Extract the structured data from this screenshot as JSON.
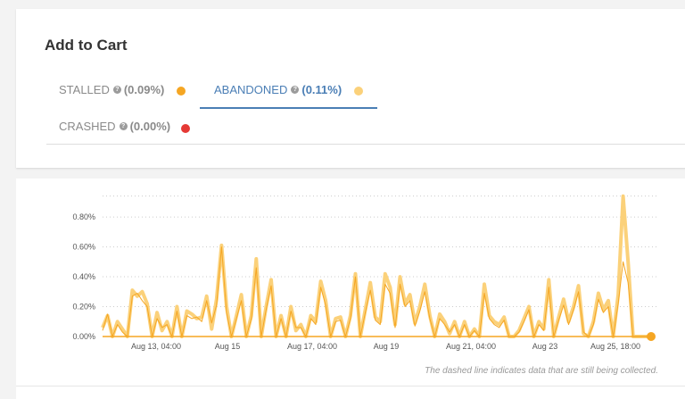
{
  "card": {
    "title": "Add to Cart"
  },
  "tabs": [
    {
      "label": "STALLED",
      "value": "(0.09%)",
      "color": "#f5a623",
      "active": false
    },
    {
      "label": "ABANDONED",
      "value": "(0.11%)",
      "color": "#fbd17a",
      "active": true
    },
    {
      "label": "CRASHED",
      "value": "(0.00%)",
      "color": "#e53935",
      "active": false
    }
  ],
  "chart_data": {
    "type": "line",
    "yticks": [
      "0.00%",
      "0.20%",
      "0.40%",
      "0.60%",
      "0.80%"
    ],
    "ylim": [
      0,
      0.95
    ],
    "xlim": [
      "Aug 12, 00:00",
      "Aug 26, 06:00"
    ],
    "xticks": [
      "Aug 13, 04:00",
      "Aug 15",
      "Aug 17, 04:00",
      "Aug 19",
      "Aug 21, 04:00",
      "Aug 23",
      "Aug 25, 18:00"
    ],
    "grid": true,
    "series": [
      {
        "color": "#fbd17a",
        "values": [
          0.06,
          0.14,
          0,
          0.1,
          0.05,
          0,
          0.31,
          0.27,
          0.3,
          0.22,
          0,
          0.16,
          0.04,
          0.1,
          0,
          0.2,
          0,
          0.17,
          0.15,
          0.12,
          0.13,
          0.27,
          0.05,
          0.25,
          0.61,
          0.2,
          0,
          0.14,
          0.28,
          0,
          0.14,
          0.52,
          0,
          0.2,
          0.38,
          0,
          0.14,
          0,
          0.2,
          0.04,
          0.08,
          0,
          0.14,
          0.1,
          0.37,
          0.24,
          0,
          0.12,
          0.13,
          0,
          0.14,
          0.42,
          0,
          0.18,
          0.36,
          0.13,
          0.1,
          0.42,
          0.33,
          0.08,
          0.4,
          0.22,
          0.28,
          0.09,
          0.2,
          0.35,
          0.14,
          0,
          0.15,
          0.1,
          0.02,
          0.1,
          0,
          0.1,
          0,
          0.05,
          0,
          0.35,
          0.14,
          0.1,
          0.08,
          0.13,
          0,
          0,
          0.04,
          0.12,
          0.2,
          0,
          0.1,
          0.05,
          0.38,
          0,
          0.13,
          0.25,
          0.1,
          0.2,
          0.34,
          0.02,
          0,
          0.1,
          0.29,
          0.18,
          0.24,
          0,
          0.28,
          0.94,
          0.5,
          0,
          0,
          0,
          0,
          0
        ],
        "line_width": 4
      },
      {
        "color": "#f5a623",
        "values": [
          0.04,
          0.15,
          0,
          0.08,
          0.03,
          0,
          0.27,
          0.29,
          0.24,
          0.2,
          0,
          0.12,
          0.06,
          0.08,
          0,
          0.17,
          0,
          0.14,
          0.12,
          0.13,
          0.1,
          0.24,
          0.09,
          0.21,
          0.6,
          0.16,
          0,
          0.12,
          0.24,
          0,
          0.12,
          0.46,
          0,
          0.18,
          0.34,
          0,
          0.12,
          0,
          0.17,
          0.06,
          0.06,
          0,
          0.12,
          0.08,
          0.33,
          0.21,
          0,
          0.1,
          0.11,
          0,
          0.12,
          0.4,
          0,
          0.16,
          0.31,
          0.11,
          0.08,
          0.35,
          0.29,
          0.06,
          0.35,
          0.2,
          0.24,
          0.07,
          0.17,
          0.3,
          0.12,
          0,
          0.12,
          0.08,
          0.03,
          0.08,
          0,
          0.08,
          0,
          0.04,
          0,
          0.29,
          0.12,
          0.08,
          0.06,
          0.11,
          0,
          0,
          0.03,
          0.1,
          0.18,
          0,
          0.08,
          0.04,
          0.33,
          0,
          0.11,
          0.21,
          0.08,
          0.18,
          0.3,
          0.03,
          0,
          0.08,
          0.25,
          0.16,
          0.2,
          0,
          0.22,
          0.5,
          0.36,
          0,
          0,
          0,
          0,
          0
        ],
        "line_width": 1
      }
    ]
  },
  "footnote": "The dashed line indicates data that are still being collected."
}
